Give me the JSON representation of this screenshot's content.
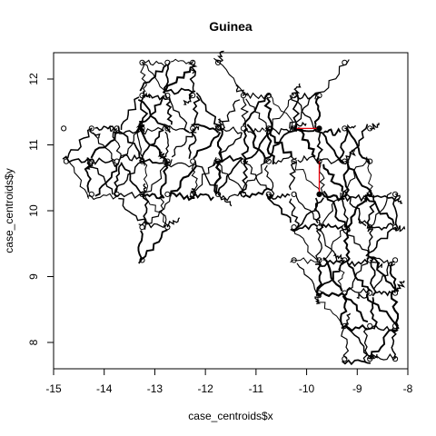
{
  "chart_data": {
    "type": "scatter",
    "title": "Guinea",
    "xlabel": "case_centroids$x",
    "ylabel": "case_centroids$y",
    "xlim": [
      -15,
      -8
    ],
    "ylim": [
      7.6,
      12.4
    ],
    "x_ticks": [
      "-15",
      "-14",
      "-13",
      "-12",
      "-11",
      "-10",
      "-9",
      "-8"
    ],
    "y_ticks": [
      "8",
      "9",
      "10",
      "11",
      "12"
    ],
    "grid": false,
    "points": [
      [
        -14.8,
        11.25
      ],
      [
        -14.75,
        10.75
      ],
      [
        -14.25,
        11.25
      ],
      [
        -14.25,
        10.75
      ],
      [
        -14.25,
        10.25
      ],
      [
        -13.75,
        11.25
      ],
      [
        -13.75,
        10.75
      ],
      [
        -13.75,
        10.25
      ],
      [
        -13.25,
        12.25
      ],
      [
        -13.25,
        11.75
      ],
      [
        -13.25,
        11.25
      ],
      [
        -13.25,
        10.75
      ],
      [
        -13.25,
        10.25
      ],
      [
        -13.25,
        9.75
      ],
      [
        -13.25,
        9.25
      ],
      [
        -12.75,
        12.25
      ],
      [
        -12.75,
        11.75
      ],
      [
        -12.75,
        11.25
      ],
      [
        -12.75,
        10.75
      ],
      [
        -12.75,
        10.25
      ],
      [
        -12.75,
        9.75
      ],
      [
        -12.25,
        12.25
      ],
      [
        -12.25,
        11.75
      ],
      [
        -12.25,
        11.25
      ],
      [
        -12.25,
        10.75
      ],
      [
        -12.25,
        10.25
      ],
      [
        -11.75,
        12.25
      ],
      [
        -11.75,
        11.25
      ],
      [
        -11.75,
        10.75
      ],
      [
        -11.75,
        10.25
      ],
      [
        -11.25,
        11.75
      ],
      [
        -11.25,
        11.25
      ],
      [
        -11.25,
        10.75
      ],
      [
        -11.25,
        10.25
      ],
      [
        -10.75,
        11.75
      ],
      [
        -10.75,
        11.25
      ],
      [
        -10.75,
        10.75
      ],
      [
        -10.75,
        10.25
      ],
      [
        -10.25,
        11.75
      ],
      [
        -10.25,
        11.25
      ],
      [
        -10.25,
        10.75
      ],
      [
        -10.25,
        10.25
      ],
      [
        -10.25,
        9.75
      ],
      [
        -10.25,
        9.25
      ],
      [
        -9.75,
        11.75
      ],
      [
        -9.75,
        11.25
      ],
      [
        -9.75,
        10.75
      ],
      [
        -9.75,
        10.25
      ],
      [
        -9.75,
        9.75
      ],
      [
        -9.75,
        9.25
      ],
      [
        -9.75,
        8.75
      ],
      [
        -9.25,
        12.25
      ],
      [
        -9.25,
        11.25
      ],
      [
        -9.25,
        10.75
      ],
      [
        -9.25,
        10.25
      ],
      [
        -9.25,
        9.75
      ],
      [
        -9.25,
        9.25
      ],
      [
        -9.25,
        8.75
      ],
      [
        -9.25,
        8.25
      ],
      [
        -9.25,
        7.75
      ],
      [
        -8.75,
        11.25
      ],
      [
        -8.75,
        10.75
      ],
      [
        -8.75,
        10.25
      ],
      [
        -8.75,
        9.75
      ],
      [
        -8.75,
        9.25
      ],
      [
        -8.75,
        8.75
      ],
      [
        -8.75,
        8.25
      ],
      [
        -8.75,
        7.75
      ],
      [
        -8.25,
        10.25
      ],
      [
        -8.25,
        9.75
      ],
      [
        -8.25,
        9.25
      ],
      [
        -8.25,
        8.75
      ],
      [
        -8.25,
        8.25
      ],
      [
        -8.25,
        7.75
      ]
    ],
    "highlight_segments": [
      [
        [
          -10.2,
          11.25
        ],
        [
          -9.75,
          11.25
        ]
      ],
      [
        [
          -9.75,
          10.75
        ],
        [
          -9.75,
          10.25
        ]
      ]
    ],
    "colors": {
      "points": "#000000",
      "boundaries": "#000000",
      "highlight": "#e8000b",
      "highlight_endpoint": "#000000"
    }
  }
}
